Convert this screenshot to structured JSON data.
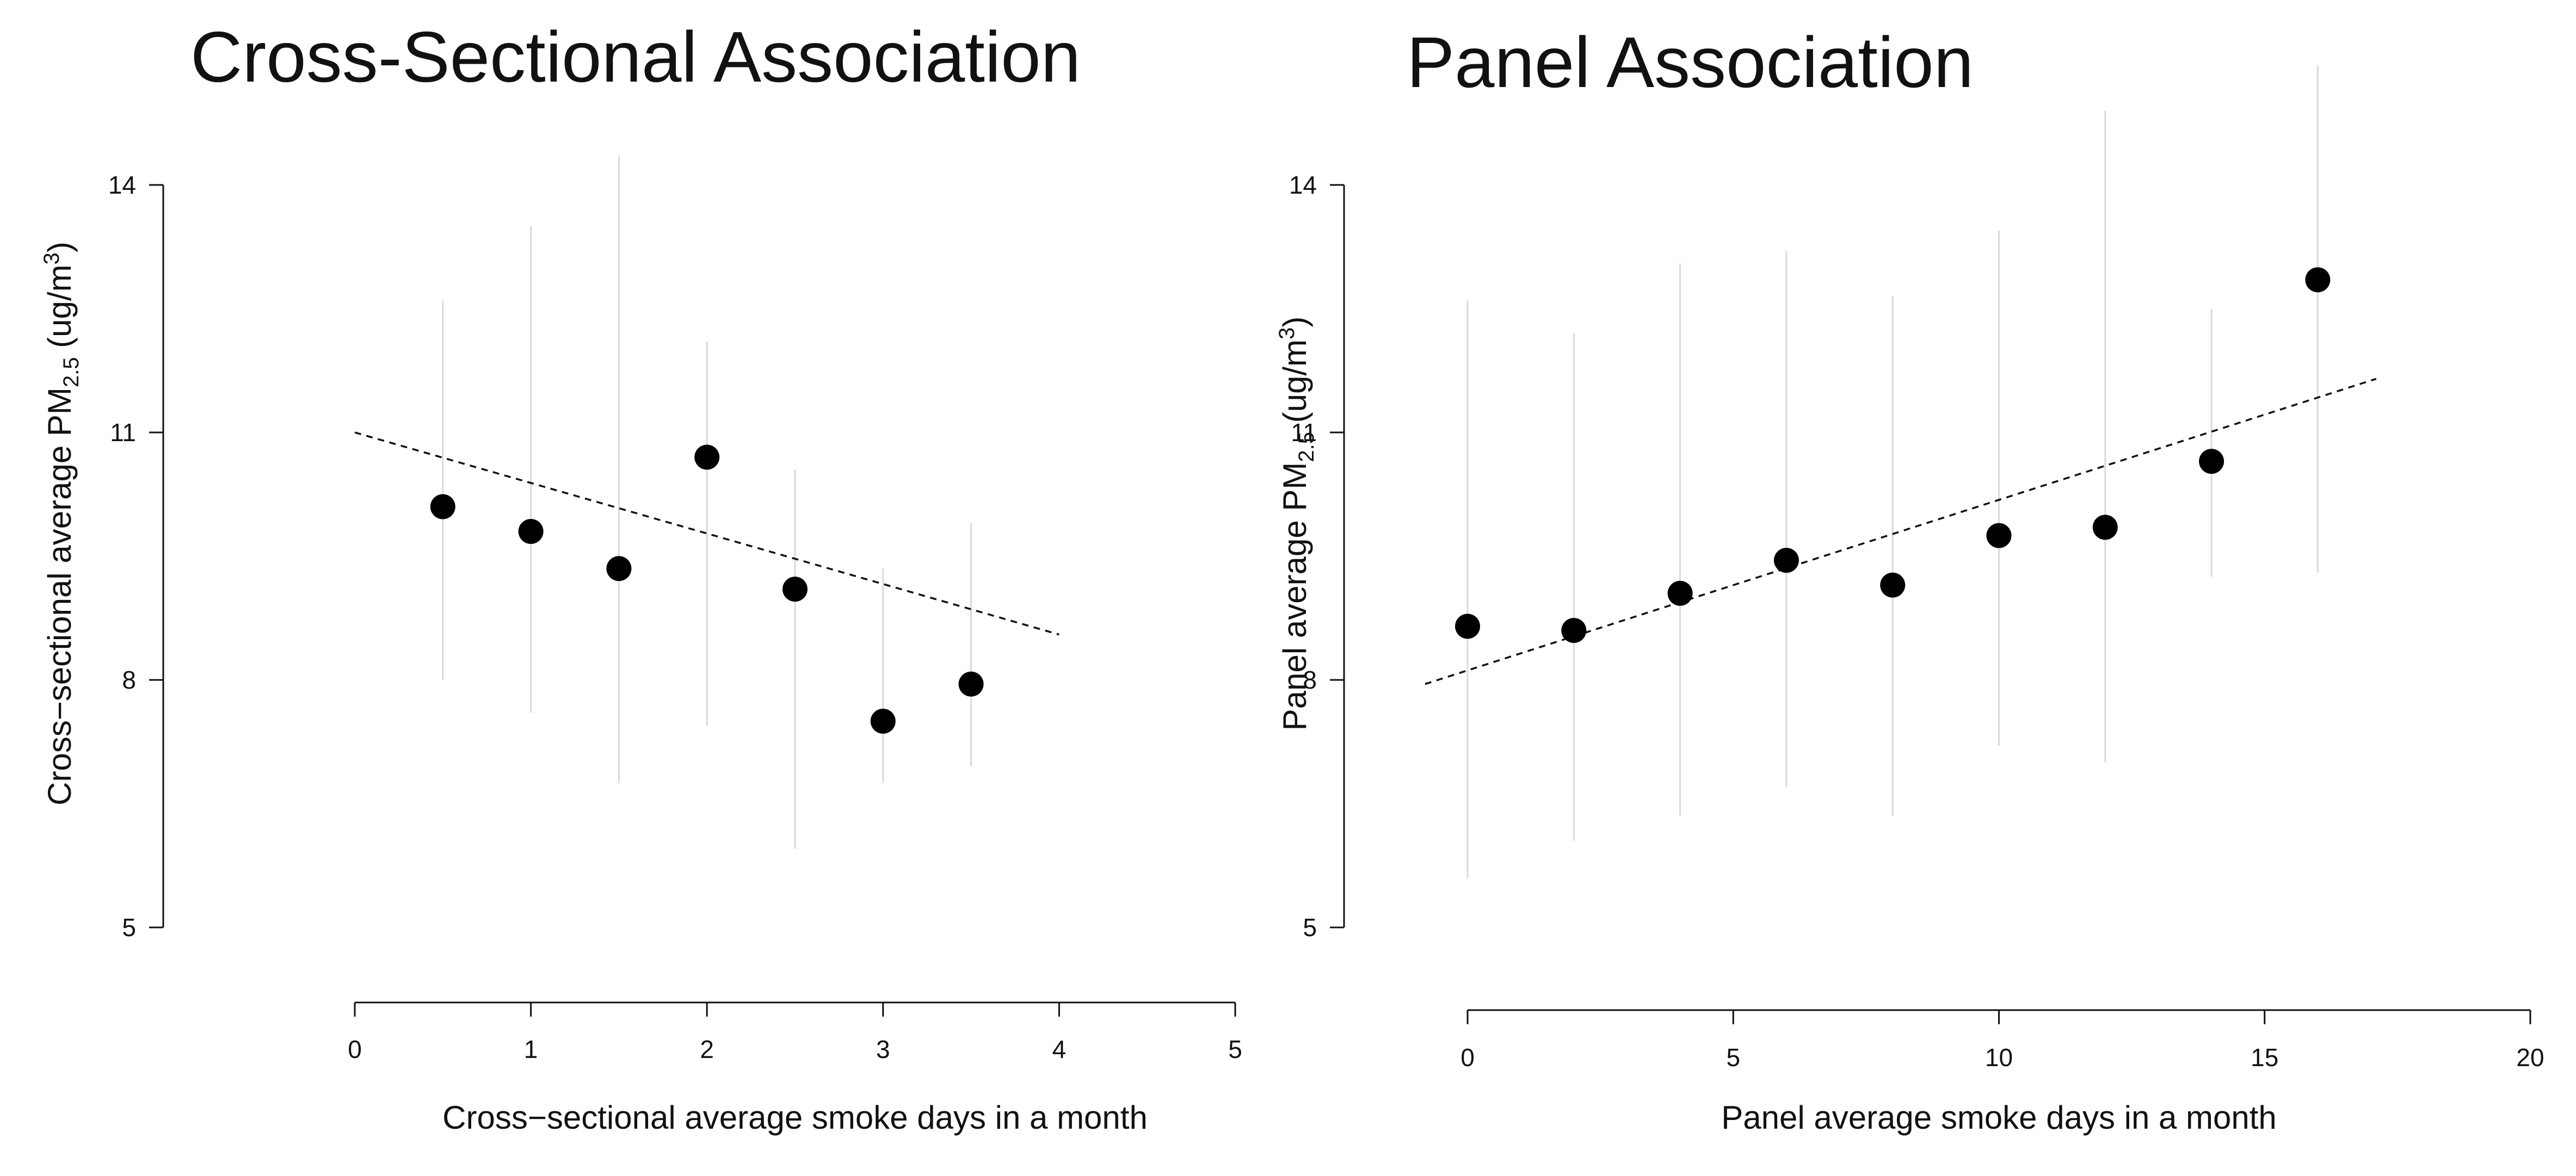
{
  "chart_data": [
    {
      "type": "scatter",
      "title": "Cross-Sectional Association",
      "xlabel": "Cross−sectional average smoke days in a month",
      "ylabel": "Cross−sectional average PM",
      "ylabel_sub": "2.5",
      "ylabel_unit": " (ug/m",
      "ylabel_sup": "3",
      "ylabel_close": ")",
      "xlim": [
        0,
        5
      ],
      "ylim": [
        5,
        14
      ],
      "xticks": [
        "0",
        "1",
        "2",
        "3",
        "4",
        "5"
      ],
      "yticks": [
        "5",
        "8",
        "11",
        "14"
      ],
      "points": [
        {
          "x": 0.5,
          "y": 10.1,
          "ci_low": 8.0,
          "ci_high": 12.6
        },
        {
          "x": 1.0,
          "y": 9.8,
          "ci_low": 7.6,
          "ci_high": 13.5
        },
        {
          "x": 1.5,
          "y": 9.35,
          "ci_low": 6.75,
          "ci_high": 14.35
        },
        {
          "x": 2.0,
          "y": 10.7,
          "ci_low": 7.45,
          "ci_high": 12.1
        },
        {
          "x": 2.5,
          "y": 9.1,
          "ci_low": 5.95,
          "ci_high": 10.55
        },
        {
          "x": 3.0,
          "y": 7.5,
          "ci_low": 6.75,
          "ci_high": 9.35
        },
        {
          "x": 3.5,
          "y": 7.95,
          "ci_low": 6.95,
          "ci_high": 9.9
        }
      ],
      "trend": {
        "x": [
          0,
          4
        ],
        "y": [
          11.0,
          8.55
        ]
      },
      "grid": false
    },
    {
      "type": "scatter",
      "title": "Panel Association",
      "xlabel": "Panel average smoke days in a month",
      "ylabel": "Panel average PM",
      "ylabel_sub": "2.5",
      "ylabel_unit": " (ug/m",
      "ylabel_sup": "3",
      "ylabel_close": ")",
      "xlim": [
        0,
        20
      ],
      "ylim": [
        5,
        14
      ],
      "xticks": [
        "0",
        "5",
        "10",
        "15",
        "20"
      ],
      "yticks": [
        "5",
        "8",
        "11",
        "14"
      ],
      "points": [
        {
          "x": 0,
          "y": 8.65,
          "ci_low": 5.6,
          "ci_high": 12.6
        },
        {
          "x": 2,
          "y": 8.6,
          "ci_low": 6.05,
          "ci_high": 12.2
        },
        {
          "x": 4,
          "y": 9.05,
          "ci_low": 6.35,
          "ci_high": 13.05
        },
        {
          "x": 6,
          "y": 9.45,
          "ci_low": 6.7,
          "ci_high": 13.2
        },
        {
          "x": 8,
          "y": 9.15,
          "ci_low": 6.35,
          "ci_high": 12.65
        },
        {
          "x": 10,
          "y": 9.75,
          "ci_low": 7.2,
          "ci_high": 13.45
        },
        {
          "x": 12,
          "y": 9.85,
          "ci_low": 7.0,
          "ci_high": 14.9
        },
        {
          "x": 14,
          "y": 10.65,
          "ci_low": 9.25,
          "ci_high": 12.5
        },
        {
          "x": 16,
          "y": 12.85,
          "ci_low": 9.3,
          "ci_high": 15.45
        }
      ],
      "trend": {
        "x": [
          -0.8,
          17.1
        ],
        "y": [
          7.95,
          11.65
        ]
      },
      "grid": false
    }
  ]
}
